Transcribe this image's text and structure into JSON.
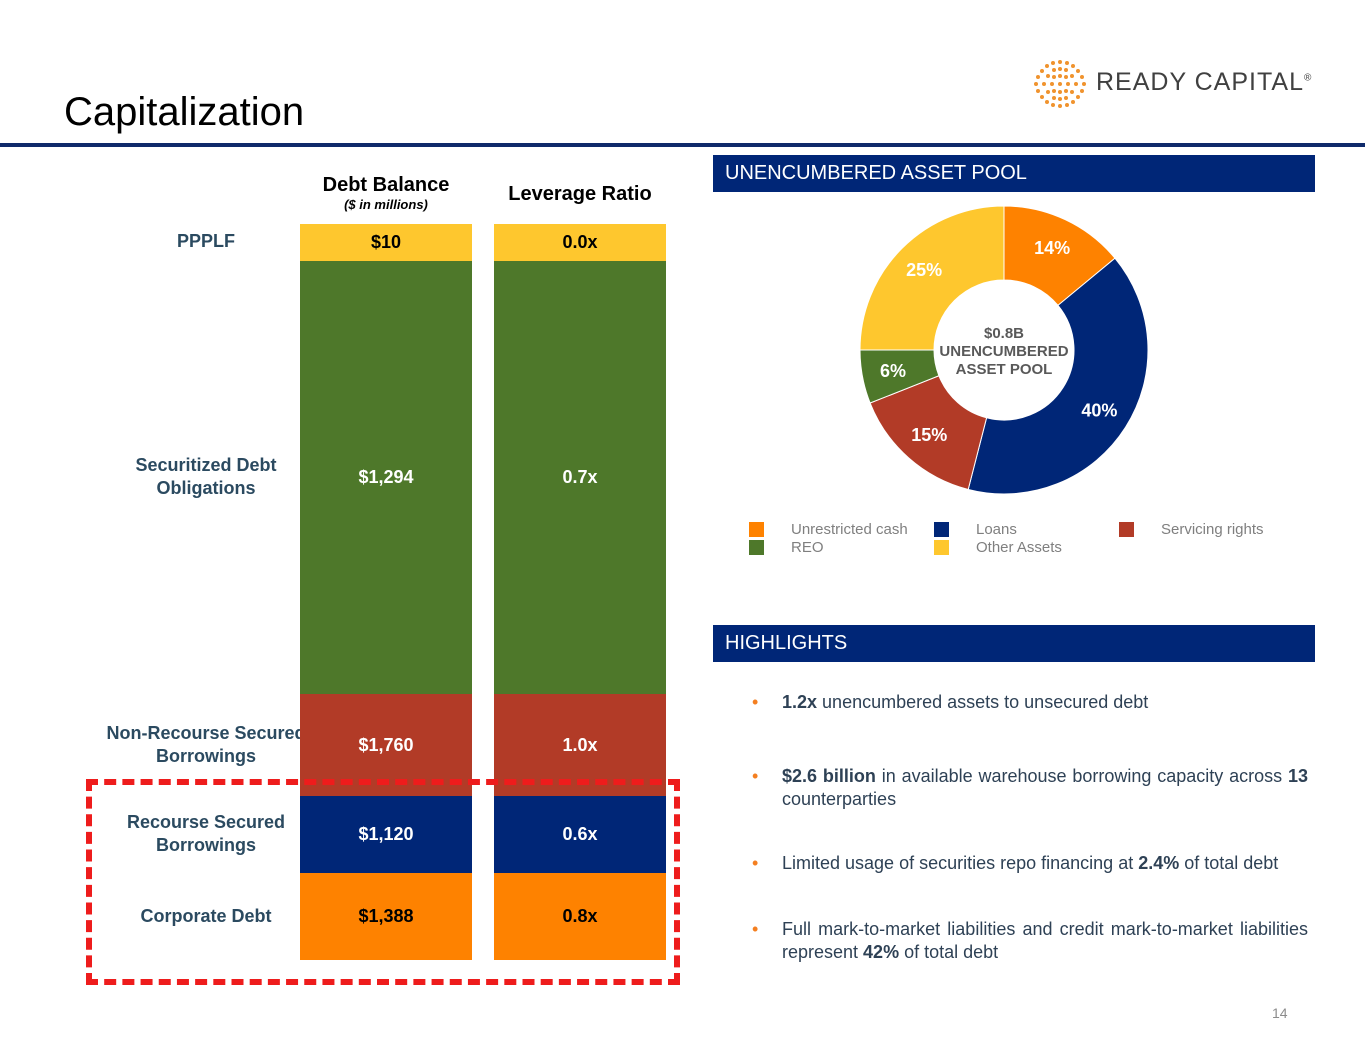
{
  "slide": {
    "title": "Capitalization",
    "page_number": "14"
  },
  "logo": {
    "text": "READY CAPITAL",
    "mark": "®"
  },
  "bar_table": {
    "header_debt": "Debt Balance",
    "header_debt_sub": "($ in millions)",
    "header_leverage": "Leverage Ratio",
    "rows": [
      {
        "label": "PPPLF",
        "debt": "$10",
        "leverage": "0.0x",
        "color": "#fec72e"
      },
      {
        "label": "Securitized Debt Obligations",
        "debt": "$1,294",
        "leverage": "0.7x",
        "color": "#4e782a"
      },
      {
        "label": "Non-Recourse Secured Borrowings",
        "debt": "$1,760",
        "leverage": "1.0x",
        "color": "#b23b27"
      },
      {
        "label": "Recourse Secured Borrowings",
        "debt": "$1,120",
        "leverage": "0.6x",
        "color": "#002677"
      },
      {
        "label": "Corporate Debt",
        "debt": "$1,388",
        "leverage": "0.8x",
        "color": "#fe8200"
      }
    ]
  },
  "pool_panel": {
    "header": "UNENCUMBERED ASSET POOL"
  },
  "chart_data": {
    "type": "pie",
    "donut": true,
    "center_label": [
      "$0.8B",
      "UNENCUMBERED",
      "ASSET POOL"
    ],
    "slices": [
      {
        "name": "Unrestricted cash",
        "value": 14,
        "label": "14%",
        "color": "#fe8200"
      },
      {
        "name": "Loans",
        "value": 40,
        "label": "40%",
        "color": "#002677"
      },
      {
        "name": "Servicing rights",
        "value": 15,
        "label": "15%",
        "color": "#b23b27"
      },
      {
        "name": "REO",
        "value": 6,
        "label": "6%",
        "color": "#4e782a"
      },
      {
        "name": "Other Assets",
        "value": 25,
        "label": "25%",
        "color": "#fec72e"
      }
    ],
    "legend_position": "bottom"
  },
  "highlights": {
    "header": "HIGHLIGHTS",
    "bullet": "•",
    "items": [
      {
        "bold": "1.2x",
        "rest": " unencumbered assets to unsecured debt"
      },
      {
        "bold": "$2.6 billion",
        "rest": " in available warehouse borrowing capacity across ",
        "bold2": "13",
        "rest2": " counterparties"
      },
      {
        "pre": "Limited usage of securities repo financing at ",
        "bold": "2.4%",
        "rest": " of total debt"
      },
      {
        "pre": "Full mark-to-market liabilities and credit mark-to-market liabilities represent ",
        "bold": "42%",
        "rest": " of total debt"
      }
    ]
  }
}
